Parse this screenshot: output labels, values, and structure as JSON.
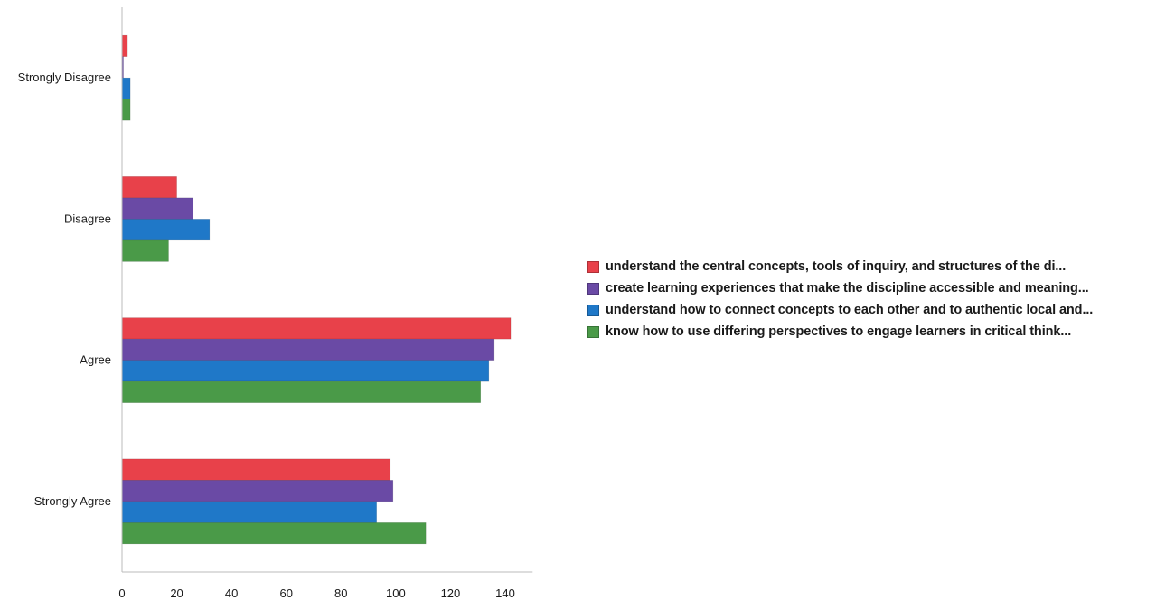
{
  "chart_data": {
    "type": "bar",
    "orientation": "horizontal",
    "categories": [
      "Strongly Disagree",
      "Disagree",
      "Agree",
      "Strongly Agree"
    ],
    "series": [
      {
        "name": "understand the central concepts, tools of inquiry, and structures of the di...",
        "color": "#e8414a",
        "values": [
          2,
          20,
          142,
          98
        ]
      },
      {
        "name": "create learning experiences that make the discipline accessible and meaning...",
        "color": "#6a4aa5",
        "values": [
          0,
          26,
          136,
          99
        ]
      },
      {
        "name": "understand how to connect concepts to each other and to authentic local and...",
        "color": "#1f78c8",
        "values": [
          3,
          32,
          134,
          93
        ]
      },
      {
        "name": "know how to use differing perspectives to engage learners in critical think...",
        "color": "#4a9a48",
        "values": [
          3,
          17,
          131,
          111
        ]
      }
    ],
    "x_ticks": [
      "0",
      "20",
      "40",
      "60",
      "80",
      "100",
      "120",
      "140"
    ],
    "xlim": [
      0,
      150
    ],
    "legend_position": "right",
    "grid": false
  }
}
